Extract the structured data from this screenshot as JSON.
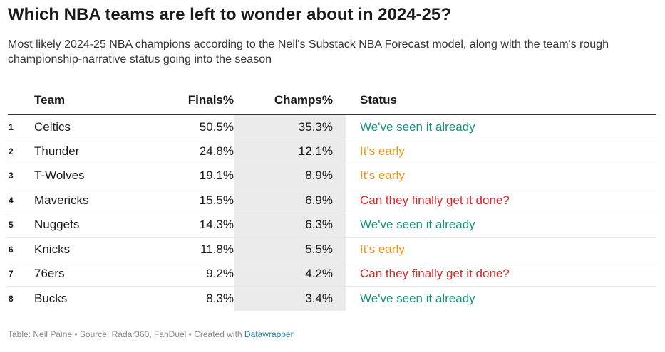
{
  "title": "Which NBA teams are left to wonder about in 2024-25?",
  "subtitle": "Most likely 2024-25 NBA champions according to the Neil's Substack NBA Forecast model, along with the team's rough championship-narrative status going into the season",
  "colors": {
    "We've seen it already": "#11937c",
    "It's early": "#f5950d",
    "Can they finally get it done?": "#d42a2a"
  },
  "chart_data": {
    "type": "table",
    "columns": [
      "",
      "Team",
      "Finals%",
      "Champs%",
      "Status"
    ],
    "rows": [
      {
        "rank": "1",
        "team": "Celtics",
        "finals": "50.5%",
        "champs": "35.3%",
        "status": "We've seen it already"
      },
      {
        "rank": "2",
        "team": "Thunder",
        "finals": "24.8%",
        "champs": "12.1%",
        "status": "It's early"
      },
      {
        "rank": "3",
        "team": "T-Wolves",
        "finals": "19.1%",
        "champs": "8.9%",
        "status": "It's early"
      },
      {
        "rank": "4",
        "team": "Mavericks",
        "finals": "15.5%",
        "champs": "6.9%",
        "status": "Can they finally get it done?"
      },
      {
        "rank": "5",
        "team": "Nuggets",
        "finals": "14.3%",
        "champs": "6.3%",
        "status": "We've seen it already"
      },
      {
        "rank": "6",
        "team": "Knicks",
        "finals": "11.8%",
        "champs": "5.5%",
        "status": "It's early"
      },
      {
        "rank": "7",
        "team": "76ers",
        "finals": "9.2%",
        "champs": "4.2%",
        "status": "Can they finally get it done?"
      },
      {
        "rank": "8",
        "team": "Bucks",
        "finals": "8.3%",
        "champs": "3.4%",
        "status": "We've seen it already"
      }
    ]
  },
  "footer": {
    "text": "Table: Neil Paine • Source: Radar360, FanDuel • Created with ",
    "link": "Datawrapper"
  }
}
